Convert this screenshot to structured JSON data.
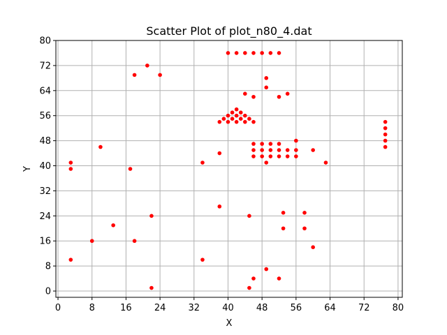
{
  "chart_data": {
    "type": "scatter",
    "title": "Scatter Plot of plot_n80_4.dat",
    "xlabel": "X",
    "ylabel": "Y",
    "xlim": [
      -0.5,
      81
    ],
    "ylim": [
      -2,
      80
    ],
    "xticks": [
      0,
      8,
      16,
      24,
      32,
      40,
      48,
      56,
      64,
      72,
      80
    ],
    "yticks": [
      0,
      8,
      16,
      24,
      32,
      40,
      48,
      56,
      64,
      72,
      80
    ],
    "grid": true,
    "marker_color": "#ff0000",
    "series": [
      {
        "points": [
          [
            3,
            41
          ],
          [
            3,
            39
          ],
          [
            3,
            10
          ],
          [
            8,
            16
          ],
          [
            10,
            46
          ],
          [
            13,
            21
          ],
          [
            17,
            39
          ],
          [
            18,
            69
          ],
          [
            18,
            16
          ],
          [
            21,
            72
          ],
          [
            22,
            24
          ],
          [
            22,
            1
          ],
          [
            24,
            69
          ],
          [
            34,
            41
          ],
          [
            34,
            10
          ],
          [
            38,
            44
          ],
          [
            38,
            27
          ],
          [
            40,
            76
          ],
          [
            42,
            76
          ],
          [
            44,
            76
          ],
          [
            46,
            76
          ],
          [
            48,
            76
          ],
          [
            50,
            76
          ],
          [
            52,
            76
          ],
          [
            49,
            68
          ],
          [
            49,
            65
          ],
          [
            44,
            63
          ],
          [
            46,
            62
          ],
          [
            52,
            62
          ],
          [
            54,
            63
          ],
          [
            38,
            54
          ],
          [
            39,
            55
          ],
          [
            40,
            56
          ],
          [
            41,
            57
          ],
          [
            42,
            58
          ],
          [
            43,
            57
          ],
          [
            44,
            56
          ],
          [
            40,
            54
          ],
          [
            41,
            55
          ],
          [
            42,
            56
          ],
          [
            43,
            55
          ],
          [
            44,
            54
          ],
          [
            45,
            55
          ],
          [
            42,
            54
          ],
          [
            46,
            54
          ],
          [
            46,
            47
          ],
          [
            46,
            45
          ],
          [
            46,
            43
          ],
          [
            48,
            47
          ],
          [
            48,
            45
          ],
          [
            48,
            43
          ],
          [
            50,
            47
          ],
          [
            50,
            45
          ],
          [
            50,
            43
          ],
          [
            52,
            47
          ],
          [
            52,
            45
          ],
          [
            52,
            43
          ],
          [
            54,
            45
          ],
          [
            54,
            43
          ],
          [
            56,
            48
          ],
          [
            56,
            45
          ],
          [
            56,
            43
          ],
          [
            49,
            41
          ],
          [
            60,
            45
          ],
          [
            63,
            41
          ],
          [
            77,
            54
          ],
          [
            77,
            52
          ],
          [
            77,
            50
          ],
          [
            77,
            48
          ],
          [
            77,
            46
          ],
          [
            45,
            24
          ],
          [
            53,
            25
          ],
          [
            53,
            20
          ],
          [
            58,
            25
          ],
          [
            58,
            20
          ],
          [
            60,
            14
          ],
          [
            49,
            7
          ],
          [
            46,
            4
          ],
          [
            45,
            1
          ],
          [
            52,
            4
          ]
        ]
      }
    ]
  }
}
